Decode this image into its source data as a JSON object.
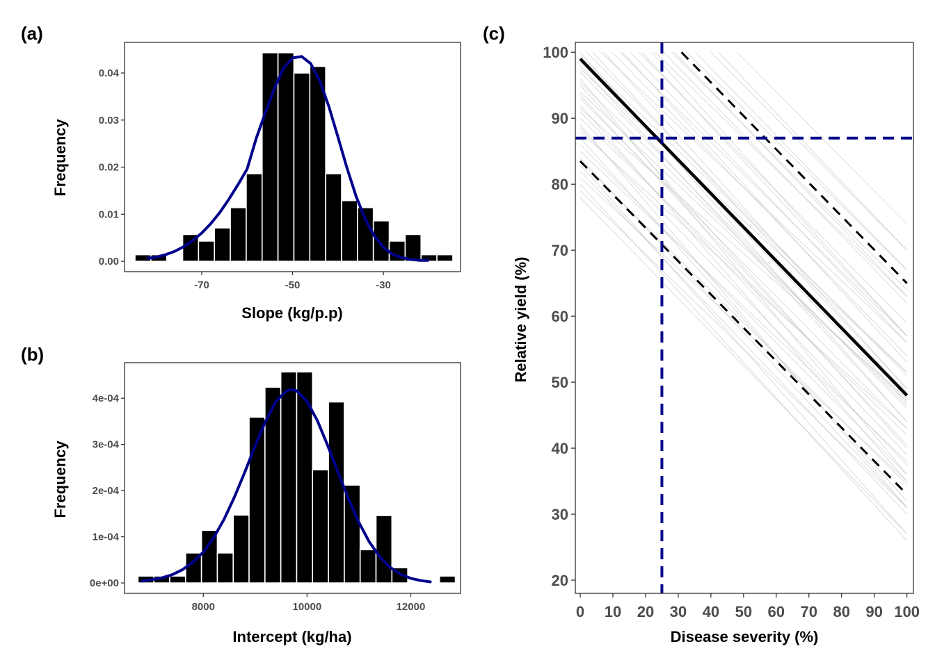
{
  "chart_data": [
    {
      "panel": "(a)",
      "type": "bar",
      "xlabel": "Slope (kg/p.p)",
      "ylabel": "Frequency",
      "x_ticks": [
        -70,
        -50,
        -30
      ],
      "y_ticks": [
        "0.00",
        "0.01",
        "0.02",
        "0.03",
        "0.04"
      ],
      "y_tick_values": [
        0,
        0.01,
        0.02,
        0.03,
        0.04
      ],
      "xlim": [
        -87,
        -13
      ],
      "ylim": [
        -0.0022,
        0.0465
      ],
      "bin_width": 3.5,
      "bin_starts": [
        -84.7,
        -81.2,
        -77.7,
        -74.2,
        -70.7,
        -67.2,
        -63.7,
        -60.2,
        -56.7,
        -53.2,
        -49.7,
        -46.2,
        -42.7,
        -39.2,
        -35.7,
        -32.2,
        -28.7,
        -25.2,
        -21.7,
        -18.2
      ],
      "values": [
        0.0014,
        0.0014,
        0,
        0.0057,
        0.0043,
        0.0071,
        0.0114,
        0.0186,
        0.0443,
        0.0443,
        0.04,
        0.0414,
        0.0186,
        0.0129,
        0.0114,
        0.0086,
        0.0043,
        0.0057,
        0.0014,
        0.0014
      ],
      "density_curve": {
        "color": "#00008b",
        "x": [
          -82,
          -80,
          -78,
          -76,
          -74,
          -72,
          -70,
          -68,
          -66,
          -64,
          -62,
          -60,
          -58,
          -56,
          -54,
          -52,
          -50,
          -48,
          -46,
          -44,
          -42,
          -40,
          -38,
          -36,
          -34,
          -32,
          -30,
          -28,
          -26,
          -24,
          -22,
          -20
        ],
        "y": [
          0.0006,
          0.0009,
          0.0014,
          0.0021,
          0.0031,
          0.0044,
          0.006,
          0.008,
          0.0104,
          0.0132,
          0.0163,
          0.0196,
          0.0261,
          0.0315,
          0.0367,
          0.041,
          0.0432,
          0.0435,
          0.042,
          0.0383,
          0.0329,
          0.0264,
          0.0198,
          0.0138,
          0.009,
          0.0054,
          0.003,
          0.0015,
          0.0008,
          0.0004,
          0.0002,
          0.0002
        ]
      }
    },
    {
      "panel": "(b)",
      "type": "bar",
      "xlabel": "Intercept (kg/ha)",
      "ylabel": "Frequency",
      "x_ticks": [
        8000,
        10000,
        12000
      ],
      "y_ticks": [
        "0e+00",
        "1e-04",
        "2e-04",
        "3e-04",
        "4e-04"
      ],
      "y_tick_values": [
        0,
        0.0001,
        0.0002,
        0.0003,
        0.0004
      ],
      "xlim": [
        6480,
        12960
      ],
      "ylim": [
        -2.25e-05,
        0.000477
      ],
      "bin_width": 306,
      "bin_starts": [
        6740,
        7046,
        7352,
        7658,
        7964,
        8270,
        8576,
        8882,
        9188,
        9494,
        9800,
        10106,
        10412,
        10718,
        11024,
        11330,
        11636,
        11942,
        12248,
        12554
      ],
      "values": [
        1.5e-05,
        1.5e-05,
        1.5e-05,
        6.5e-05,
        0.000114,
        6.5e-05,
        0.000147,
        0.000359,
        0.000424,
        0.000457,
        0.000457,
        0.000245,
        0.000392,
        0.000212,
        7.2e-05,
        0.000146,
        3.3e-05,
        0,
        0,
        1.5e-05
      ],
      "density_curve": {
        "color": "#00008b",
        "x": [
          6800,
          7000,
          7200,
          7400,
          7600,
          7800,
          8000,
          8200,
          8400,
          8600,
          8800,
          9000,
          9200,
          9400,
          9600,
          9700,
          9800,
          10000,
          10200,
          10400,
          10600,
          10800,
          11000,
          11200,
          11400,
          11600,
          11800,
          12000,
          12200,
          12400
        ],
        "y": [
          4e-06,
          7e-06,
          1.1e-05,
          1.8e-05,
          2.9e-05,
          4.5e-05,
          6.7e-05,
          9.8e-05,
          0.000138,
          0.000186,
          0.00024,
          0.000297,
          0.00035,
          0.000393,
          0.000416,
          0.000419,
          0.000416,
          0.000393,
          0.000351,
          0.000297,
          0.000239,
          0.000182,
          0.000131,
          8.9e-05,
          5.7e-05,
          3.4e-05,
          1.9e-05,
          1e-05,
          5e-06,
          2e-06
        ]
      }
    },
    {
      "panel": "(c)",
      "type": "line",
      "xlabel": "Disease severity (%)",
      "ylabel": "Relative yield (%)",
      "x_ticks": [
        0,
        10,
        20,
        30,
        40,
        50,
        60,
        70,
        80,
        90,
        100
      ],
      "y_ticks": [
        20,
        30,
        40,
        50,
        60,
        70,
        80,
        90,
        100
      ],
      "xlim": [
        -1.5,
        102
      ],
      "ylim": [
        18,
        101.5
      ],
      "mean_line": {
        "intercept": 99,
        "slope": -0.51,
        "color": "#000000"
      },
      "ci_lines": [
        {
          "name": "upper",
          "points": [
            [
              31,
              100
            ],
            [
              100,
              65
            ]
          ],
          "style": "dashed",
          "color": "#000000"
        },
        {
          "name": "lower",
          "points": [
            [
              0,
              83.5
            ],
            [
              100,
              33
            ]
          ],
          "style": "dashed",
          "color": "#000000"
        }
      ],
      "simulated_lines": {
        "color": "#bdbdbd",
        "intercepts": [
          78,
          79,
          80,
          81,
          82,
          83,
          83.5,
          84,
          85,
          86,
          87,
          88,
          88.5,
          89,
          90,
          91,
          91.5,
          92,
          93,
          93.5,
          94,
          95,
          95.5,
          96,
          97,
          97.5,
          98,
          98.5,
          99,
          99.5,
          100,
          101,
          102,
          103,
          104,
          105,
          106,
          107,
          108,
          109,
          110,
          111,
          112,
          113,
          114,
          115,
          116,
          118,
          120,
          122,
          124
        ],
        "slopes": [
          -0.51,
          -0.48,
          -0.54,
          -0.46,
          -0.52,
          -0.56,
          -0.49,
          -0.53,
          -0.47,
          -0.5,
          -0.55,
          -0.45,
          -0.51,
          -0.58,
          -0.48,
          -0.52,
          -0.44,
          -0.57,
          -0.5,
          -0.53,
          -0.47,
          -0.55,
          -0.49,
          -0.6,
          -0.51,
          -0.46,
          -0.54,
          -0.5,
          -0.52,
          -0.48,
          -0.56,
          -0.5,
          -0.53,
          -0.47,
          -0.55,
          -0.51,
          -0.49,
          -0.54,
          -0.52,
          -0.5,
          -0.53,
          -0.48,
          -0.55,
          -0.51,
          -0.5,
          -0.52,
          -0.49,
          -0.51,
          -0.5,
          -0.52,
          -0.5
        ]
      },
      "reference_lines": [
        {
          "orientation": "vertical",
          "x": 25,
          "color": "#00008b",
          "style": "dashed"
        },
        {
          "orientation": "horizontal",
          "y": 87,
          "color": "#00008b",
          "style": "dashed"
        }
      ]
    }
  ]
}
